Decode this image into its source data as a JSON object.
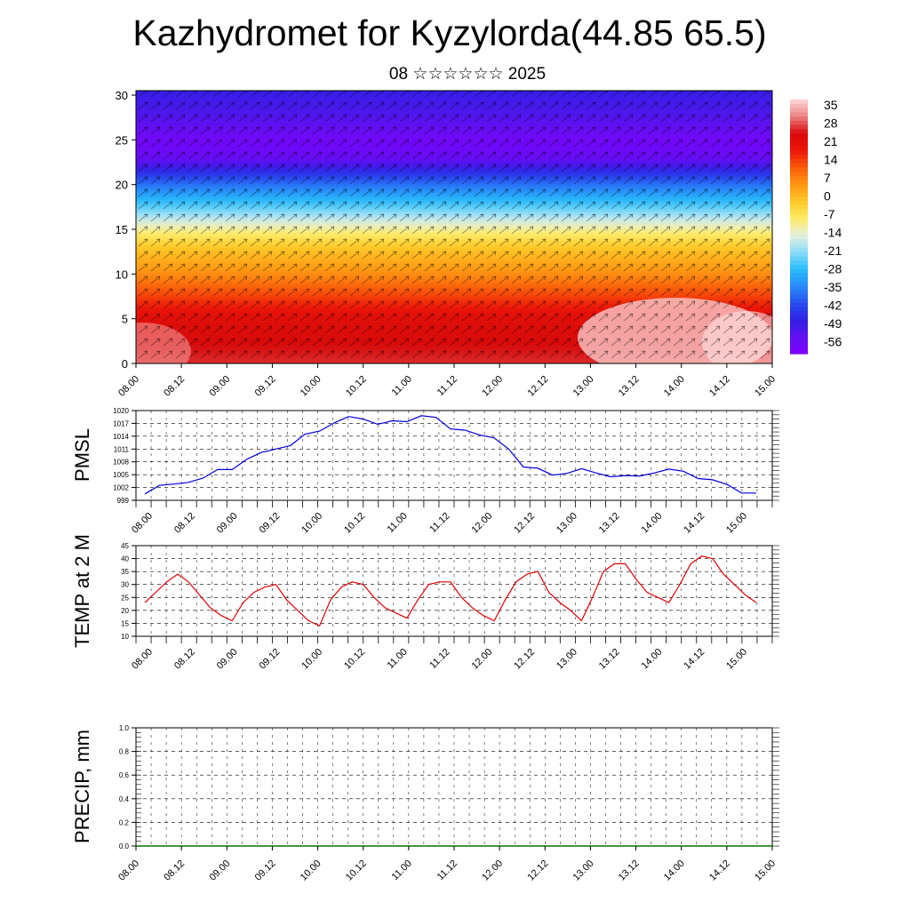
{
  "header": {
    "title": "Kazhydromet for Kyzylorda(44.85 65.5)",
    "subtitle": "08 ☆☆☆☆☆☆ 2025"
  },
  "chart_data": [
    {
      "type": "heatmap",
      "title": "Kazhydromet for Kyzylorda(44.85 65.5)",
      "subtitle": "08 ☆☆☆☆☆☆ 2025",
      "x_tick_labels": [
        "08.00",
        "08.12",
        "09.00",
        "09.12",
        "10.00",
        "10.12",
        "11.00",
        "11.12",
        "12.00",
        "12.12",
        "13.00",
        "13.12",
        "14.00",
        "14.12",
        "15.00"
      ],
      "y_ticks": [
        0,
        5,
        10,
        15,
        20,
        25,
        30
      ],
      "ylim": [
        0,
        30.5
      ],
      "colorbar_labels": [
        "35",
        "28",
        "21",
        "14",
        "7",
        "0",
        "-7",
        "-14",
        "-21",
        "-28",
        "-35",
        "-42",
        "-49",
        "-56"
      ],
      "colorbar_range": [
        -63,
        42
      ],
      "temperature_profile": [
        {
          "z": 0,
          "t": 30
        },
        {
          "z": 5,
          "t": 25
        },
        {
          "z": 10,
          "t": 8
        },
        {
          "z": 13,
          "t": 0
        },
        {
          "z": 15,
          "t": -10
        },
        {
          "z": 17,
          "t": -22
        },
        {
          "z": 20,
          "t": -38
        },
        {
          "z": 23,
          "t": -58
        },
        {
          "z": 25,
          "t": -60
        },
        {
          "z": 28,
          "t": -53
        },
        {
          "z": 30.5,
          "t": -50
        }
      ],
      "overlay": "wind vectors"
    },
    {
      "type": "line",
      "ylabel": "PMSL",
      "ylim": [
        999,
        1020
      ],
      "y_ticks": [
        999,
        1002,
        1005,
        1008,
        1011,
        1014,
        1017,
        1020
      ],
      "x_tick_labels": [
        "08.00",
        "08.12",
        "09.00",
        "09.12",
        "10.00",
        "10.12",
        "11.00",
        "11.12",
        "12.00",
        "12.12",
        "13.00",
        "13.12",
        "14.00",
        "14.12",
        "15.00"
      ],
      "line_color": "#0000dd",
      "values": [
        1000.5,
        1002.5,
        1002.8,
        1003.2,
        1004.2,
        1006.2,
        1006.2,
        1008.6,
        1010.2,
        1011.0,
        1011.8,
        1014.5,
        1015.2,
        1017.1,
        1018.6,
        1018.0,
        1016.8,
        1017.6,
        1017.4,
        1018.8,
        1018.4,
        1015.7,
        1015.4,
        1014.3,
        1013.6,
        1011.0,
        1006.8,
        1006.5,
        1004.9,
        1005.3,
        1006.4,
        1005.4,
        1004.5,
        1004.8,
        1004.7,
        1005.4,
        1006.3,
        1005.8,
        1004.1,
        1003.8,
        1002.7,
        1000.7,
        1000.7
      ]
    },
    {
      "type": "line",
      "ylabel": "TEMP at 2 M",
      "ylim": [
        10,
        45
      ],
      "y_ticks": [
        10,
        15,
        20,
        25,
        30,
        35,
        40,
        45
      ],
      "x_tick_labels": [
        "08.00",
        "08.12",
        "09.00",
        "09.12",
        "10.00",
        "10.12",
        "11.00",
        "11.12",
        "12.00",
        "12.12",
        "13.00",
        "13.12",
        "14.00",
        "14.12",
        "15.00"
      ],
      "line_color": "#dd0000",
      "values": [
        23,
        27,
        31,
        34,
        31,
        26,
        21,
        18,
        16,
        23,
        27,
        29,
        30,
        24,
        20,
        16,
        14,
        24,
        29,
        31,
        30,
        25,
        21,
        19,
        17,
        24,
        30,
        31,
        31,
        25,
        21,
        18,
        16,
        24,
        31,
        34,
        35,
        27,
        23,
        20,
        16,
        25,
        35,
        38,
        38,
        32,
        27,
        25,
        23,
        30,
        38,
        41,
        40,
        34,
        30,
        26,
        23
      ]
    },
    {
      "type": "line",
      "ylabel": "PRECIP, mm",
      "ylim": [
        0,
        1.0
      ],
      "y_ticks": [
        "0.0",
        "0.2",
        "0.4",
        "0.6",
        "0.8",
        "1.0"
      ],
      "x_tick_labels": [
        "08.00",
        "08.12",
        "09.00",
        "09.12",
        "10.00",
        "10.12",
        "11.00",
        "11.12",
        "12.00",
        "12.12",
        "13.00",
        "13.12",
        "14.00",
        "14.12",
        "15.00"
      ],
      "line_color": "#007700",
      "values": [
        0,
        0,
        0,
        0,
        0,
        0,
        0,
        0,
        0,
        0,
        0,
        0,
        0,
        0,
        0
      ]
    }
  ]
}
